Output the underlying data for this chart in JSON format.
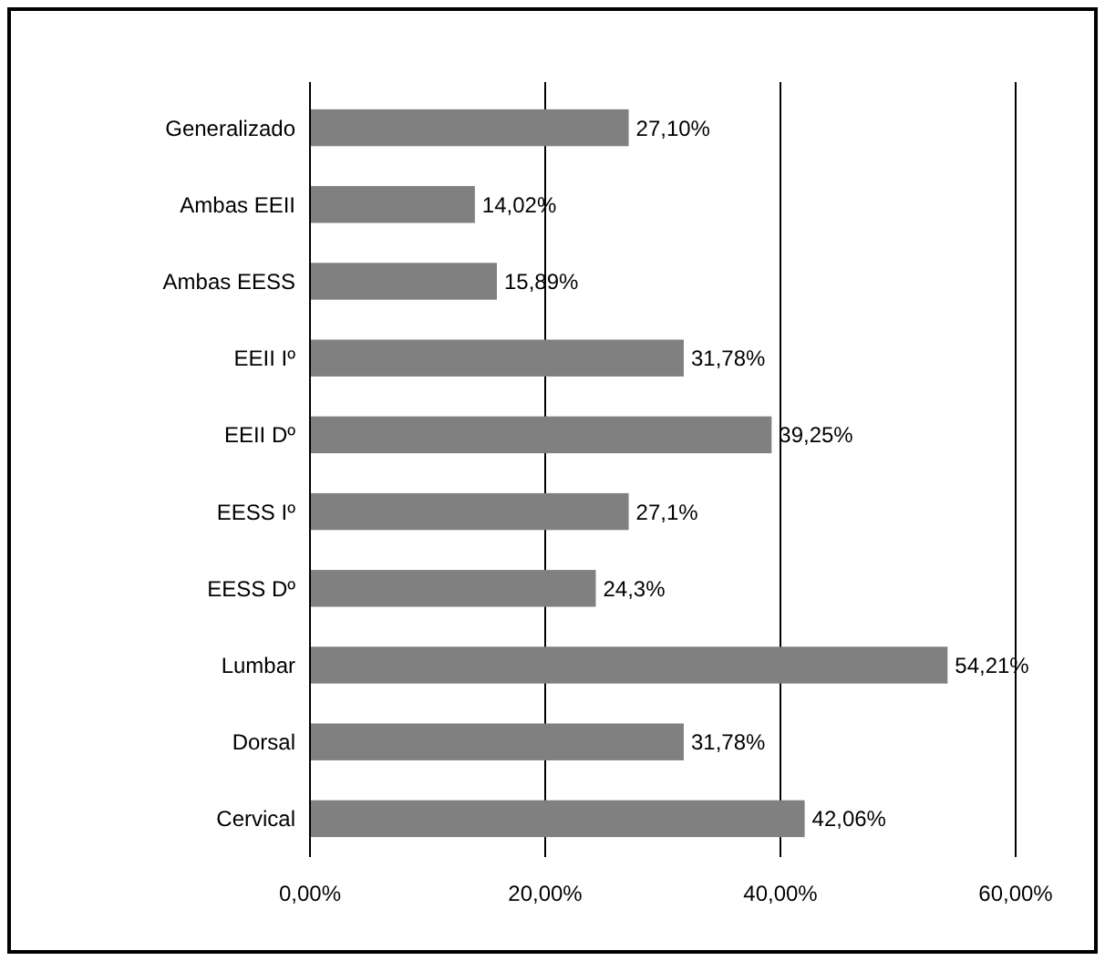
{
  "chart_data": {
    "type": "bar",
    "orientation": "horizontal",
    "categories": [
      "Generalizado",
      "Ambas EEII",
      "Ambas EESS",
      "EEII Iº",
      "EEII Dº",
      "EESS Iº",
      "EESS Dº",
      "Lumbar",
      "Dorsal",
      "Cervical"
    ],
    "values": [
      27.1,
      14.02,
      15.89,
      31.78,
      39.25,
      27.1,
      24.3,
      54.21,
      31.78,
      42.06
    ],
    "value_labels": [
      "27,10%",
      "14,02%",
      "15,89%",
      "31,78%",
      "39,25%",
      "27,1%",
      "24,3%",
      "54,21%",
      "31,78%",
      "42,06%"
    ],
    "color": "#808080",
    "xlim": [
      0,
      60
    ],
    "xticks": [
      {
        "value": 0,
        "label": "0,00%"
      },
      {
        "value": 20,
        "label": "20,00%"
      },
      {
        "value": 40,
        "label": "40,00%"
      },
      {
        "value": 60,
        "label": "60,00%"
      }
    ],
    "grid": "x"
  }
}
